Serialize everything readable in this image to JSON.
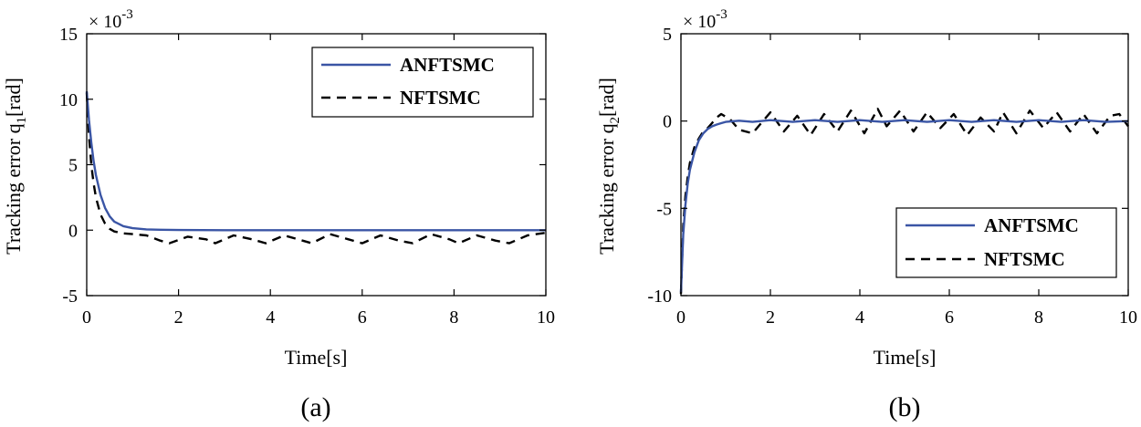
{
  "chart_data": [
    {
      "type": "line",
      "caption": "(a)",
      "xlabel": "Time[s]",
      "ylabel": "Tracking error q",
      "ylabel_subscript": "1",
      "ylabel_unit": "[rad]",
      "y_multiplier": "× 10",
      "y_multiplier_exponent": "-3",
      "xlim": [
        0,
        10
      ],
      "ylim": [
        -5,
        15
      ],
      "xticks": [
        0,
        2,
        4,
        6,
        8,
        10
      ],
      "yticks": [
        -5,
        0,
        5,
        10,
        15
      ],
      "xtick_labels": [
        "0",
        "2",
        "4",
        "6",
        "8",
        "10"
      ],
      "ytick_labels": [
        "-5",
        "0",
        "5",
        "10",
        "15"
      ],
      "legend_position": "top-right",
      "series": [
        {
          "name": "ANFTSMC",
          "color": "#3a55a5",
          "style": "solid",
          "x": [
            0,
            0.05,
            0.1,
            0.15,
            0.2,
            0.3,
            0.4,
            0.5,
            0.6,
            0.8,
            1.0,
            1.3,
            1.6,
            2.0,
            3.0,
            4.0,
            5.0,
            6.0,
            7.0,
            8.0,
            9.0,
            10.0
          ],
          "values": [
            10.6,
            8.4,
            6.7,
            5.3,
            4.2,
            2.7,
            1.7,
            1.05,
            0.65,
            0.3,
            0.15,
            0.06,
            0.03,
            0.01,
            0,
            0,
            0,
            0,
            0,
            0,
            0,
            0
          ]
        },
        {
          "name": "NFTSMC",
          "color": "#000000",
          "style": "dashed",
          "x": [
            0,
            0.05,
            0.1,
            0.15,
            0.2,
            0.3,
            0.4,
            0.5,
            0.6,
            0.8,
            1.0,
            1.3,
            1.6,
            1.8,
            2.2,
            2.6,
            2.8,
            3.2,
            3.6,
            3.9,
            4.3,
            4.7,
            4.9,
            5.3,
            5.7,
            6.0,
            6.4,
            6.8,
            7.1,
            7.5,
            7.9,
            8.1,
            8.5,
            8.9,
            9.2,
            9.6,
            10.0
          ],
          "values": [
            10.5,
            7.2,
            5.0,
            3.6,
            2.5,
            1.2,
            0.5,
            0.1,
            -0.1,
            -0.25,
            -0.3,
            -0.4,
            -0.8,
            -1.0,
            -0.5,
            -0.7,
            -1.0,
            -0.4,
            -0.7,
            -1.0,
            -0.4,
            -0.8,
            -1.0,
            -0.3,
            -0.7,
            -1.0,
            -0.4,
            -0.8,
            -1.0,
            -0.3,
            -0.7,
            -1.0,
            -0.4,
            -0.8,
            -1.0,
            -0.4,
            -0.2
          ]
        }
      ]
    },
    {
      "type": "line",
      "caption": "(b)",
      "xlabel": "Time[s]",
      "ylabel": "Tracking error q",
      "ylabel_subscript": "2",
      "ylabel_unit": "[rad]",
      "y_multiplier": "× 10",
      "y_multiplier_exponent": "-3",
      "xlim": [
        0,
        10
      ],
      "ylim": [
        -10,
        5
      ],
      "xticks": [
        0,
        2,
        4,
        6,
        8,
        10
      ],
      "yticks": [
        -10,
        -5,
        0,
        5
      ],
      "xtick_labels": [
        "0",
        "2",
        "4",
        "6",
        "8",
        "10"
      ],
      "ytick_labels": [
        "-10",
        "-5",
        "0",
        "5"
      ],
      "legend_position": "bottom-right",
      "series": [
        {
          "name": "ANFTSMC",
          "color": "#3a55a5",
          "style": "solid",
          "x": [
            0,
            0.05,
            0.1,
            0.15,
            0.2,
            0.3,
            0.4,
            0.5,
            0.6,
            0.7,
            0.8,
            0.9,
            1.0,
            1.3,
            1.6,
            2.0,
            2.5,
            3.0,
            3.5,
            4.0,
            4.5,
            5.0,
            5.5,
            6.0,
            6.5,
            7.0,
            7.5,
            8.0,
            8.5,
            9.0,
            9.5,
            10.0
          ],
          "values": [
            -9.8,
            -6.5,
            -4.8,
            -3.6,
            -2.8,
            -1.8,
            -1.1,
            -0.7,
            -0.45,
            -0.3,
            -0.2,
            -0.12,
            -0.05,
            0.02,
            -0.05,
            0.05,
            -0.05,
            0.05,
            -0.05,
            0.05,
            -0.05,
            0.05,
            -0.05,
            0.05,
            -0.05,
            0.05,
            -0.05,
            0.05,
            -0.05,
            0.05,
            -0.05,
            0.0
          ]
        },
        {
          "name": "NFTSMC",
          "color": "#000000",
          "style": "dashed",
          "x": [
            0,
            0.05,
            0.1,
            0.15,
            0.2,
            0.3,
            0.4,
            0.5,
            0.6,
            0.7,
            0.8,
            0.9,
            1.1,
            1.3,
            1.6,
            2.0,
            2.3,
            2.6,
            2.9,
            3.2,
            3.5,
            3.8,
            4.1,
            4.4,
            4.6,
            4.9,
            5.2,
            5.5,
            5.8,
            6.1,
            6.4,
            6.7,
            7.0,
            7.2,
            7.5,
            7.8,
            8.1,
            8.4,
            8.7,
            9.0,
            9.3,
            9.6,
            9.8,
            10.0
          ],
          "values": [
            -9.9,
            -6.0,
            -4.3,
            -3.2,
            -2.4,
            -1.5,
            -1.0,
            -0.6,
            -0.4,
            -0.1,
            0.2,
            0.4,
            0.1,
            -0.5,
            -0.7,
            0.5,
            -0.6,
            0.3,
            -0.8,
            0.4,
            -0.6,
            0.6,
            -0.7,
            0.7,
            -0.3,
            0.6,
            -0.6,
            0.5,
            -0.4,
            0.4,
            -0.8,
            0.2,
            -0.6,
            0.5,
            -0.7,
            0.6,
            -0.4,
            0.5,
            -0.6,
            0.4,
            -0.7,
            0.3,
            0.4,
            -0.3
          ]
        }
      ]
    }
  ]
}
